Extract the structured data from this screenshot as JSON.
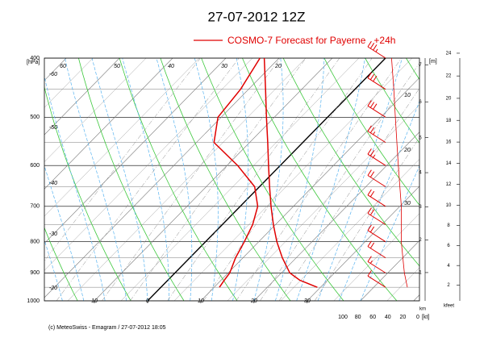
{
  "chart_data": {
    "type": "skewt",
    "title": "27-07-2012 12Z",
    "footer": "(c) MeteoSwiss - Emagram / 27-07-2012 18:05",
    "ylabel": "[hPa]",
    "yscale": "log",
    "ylim": [
      1000,
      400
    ],
    "yticks": [
      400,
      500,
      600,
      700,
      800,
      900,
      1000
    ],
    "xlim": [
      -19.4,
      51.1
    ],
    "xticks": [
      {
        "value": -10,
        "label": "10"
      },
      0,
      10,
      20,
      30
    ],
    "y": [
      950,
      925,
      900,
      850,
      800,
      750,
      700,
      650,
      600,
      550,
      500,
      450,
      400
    ],
    "series": [
      {
        "name": "COSMO-7 Forecast for Payerne   +24h",
        "color": "#e00000",
        "values": [
          29.4,
          24.8,
          21.6,
          17.4,
          13.4,
          9.6,
          5.8,
          1.9,
          -2.2,
          -6.6,
          -11.5,
          -16.8,
          -22.8
        ]
      },
      {
        "color": "#e00000",
        "values": [
          11,
          10.6,
          10.3,
          8.6,
          7.3,
          5.7,
          3.3,
          -0.9,
          -8,
          -16.7,
          -20.6,
          -21.5,
          -23.6
        ]
      }
    ],
    "isotherm_labels_left": [
      "-60",
      "-50",
      "-40",
      "-30",
      "-20"
    ],
    "isotherm_labels_top": [
      "60",
      "50",
      "40",
      "30",
      "20"
    ],
    "labels_right": [
      "10",
      "20",
      "30"
    ],
    "height_km": {
      "label": "[m]",
      "unit": "km",
      "ticks": [
        1,
        2,
        3,
        4,
        5,
        6,
        7
      ]
    },
    "height_kfeet": {
      "unit": "kfeet",
      "ticks": [
        2,
        4,
        6,
        8,
        10,
        12,
        14,
        16,
        18,
        20,
        22,
        24
      ]
    },
    "wind": {
      "xlabel": "[kt]",
      "xlim": [
        100,
        0
      ],
      "xticks": [
        100,
        80,
        60,
        40,
        20,
        0
      ],
      "color": "#e00000",
      "y": [
        950,
        900,
        850,
        800,
        750,
        700,
        650,
        600,
        550,
        500,
        450,
        400
      ],
      "values": [
        14,
        18,
        20,
        22,
        22,
        22,
        24,
        26,
        28,
        30,
        32,
        35
      ]
    }
  }
}
